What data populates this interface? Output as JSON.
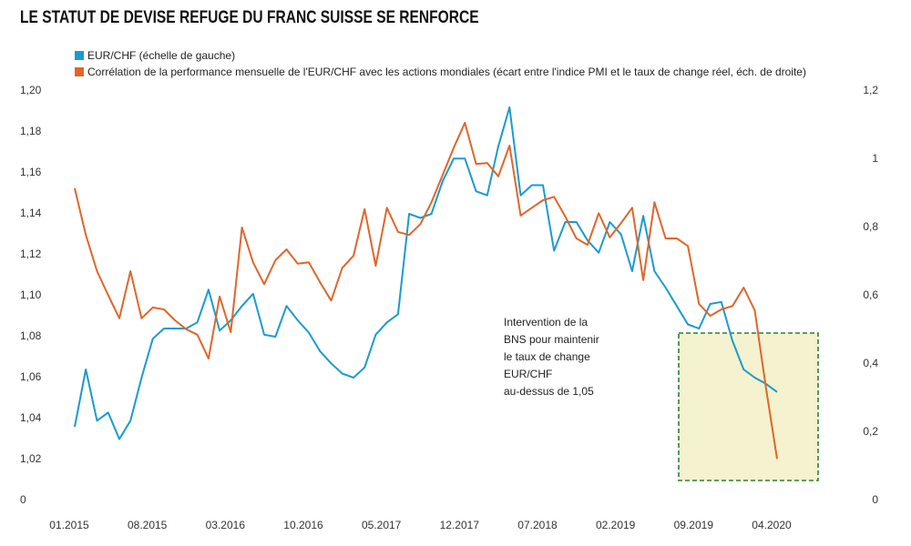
{
  "chart_data": {
    "type": "line",
    "title": "LE STATUT DE DEVISE REFUGE DU FRANC SUISSE SE RENFORCE",
    "categories": [
      "01.2015",
      null,
      null,
      null,
      null,
      null,
      null,
      "08.2015",
      null,
      null,
      null,
      null,
      null,
      null,
      "03.2016",
      null,
      null,
      null,
      null,
      null,
      null,
      "10.2016",
      null,
      null,
      null,
      null,
      null,
      null,
      "05.2017",
      null,
      null,
      null,
      null,
      null,
      null,
      "12.2017",
      null,
      null,
      null,
      null,
      null,
      null,
      "07.2018",
      null,
      null,
      null,
      null,
      null,
      null,
      "02.2019",
      null,
      null,
      null,
      null,
      null,
      null,
      "09.2019",
      null,
      null,
      null,
      null,
      null,
      null,
      "04.2020"
    ],
    "series": [
      {
        "name": "EUR/CHF (échelle de gauche)",
        "color": "#1a9bd0",
        "values": [
          1.036,
          1.064,
          1.039,
          1.043,
          1.03,
          1.039,
          1.06,
          1.079,
          1.084,
          1.084,
          1.084,
          1.087,
          1.103,
          1.083,
          1.088,
          1.095,
          1.101,
          1.081,
          1.08,
          1.095,
          1.088,
          1.082,
          1.073,
          1.067,
          1.062,
          1.06,
          1.065,
          1.081,
          1.087,
          1.091,
          1.14,
          1.138,
          1.14,
          1.156,
          1.167,
          1.167,
          1.151,
          1.149,
          1.173,
          1.192,
          1.149,
          1.154,
          1.154,
          1.122,
          1.136,
          1.136,
          1.127,
          1.121,
          1.136,
          1.13,
          1.112,
          1.139,
          1.112,
          1.104,
          1.095,
          1.086,
          1.084,
          1.096,
          1.097,
          1.078,
          1.064,
          1.06,
          1.057,
          1.053
        ]
      },
      {
        "name": "Corrélation de la performance mensuelle de l'EUR/CHF avec les actions mondiales (écart entre l'indice PMI et le taux de change réel, éch. de droite)",
        "color": "#e0662a",
        "axis": "y2",
        "values": [
          0.915,
          0.778,
          0.672,
          0.602,
          0.534,
          0.672,
          0.534,
          0.566,
          0.56,
          0.528,
          0.502,
          0.486,
          0.416,
          0.598,
          0.493,
          0.8,
          0.698,
          0.634,
          0.704,
          0.736,
          0.694,
          0.698,
          0.64,
          0.586,
          0.682,
          0.717,
          0.854,
          0.688,
          0.858,
          0.787,
          0.778,
          0.81,
          0.874,
          0.954,
          1.034,
          1.107,
          0.986,
          0.989,
          0.95,
          1.04,
          0.835,
          0.858,
          0.88,
          0.89,
          0.832,
          0.768,
          0.749,
          0.842,
          0.771,
          0.813,
          0.858,
          0.646,
          0.874,
          0.768,
          0.768,
          0.746,
          0.576,
          0.541,
          0.56,
          0.57,
          0.624,
          0.557,
          0.33,
          0.122
        ]
      }
    ],
    "ylim": [
      1.0,
      1.2
    ],
    "yticks": [
      {
        "value": 1.02,
        "label": "1,02"
      },
      {
        "value": 1.04,
        "label": "1,04"
      },
      {
        "value": 1.06,
        "label": "1,06"
      },
      {
        "value": 1.08,
        "label": "1,08"
      },
      {
        "value": 1.1,
        "label": "1,10"
      },
      {
        "value": 1.12,
        "label": "1,12"
      },
      {
        "value": 1.14,
        "label": "1,14"
      },
      {
        "value": 1.16,
        "label": "1,16"
      },
      {
        "value": 1.18,
        "label": "1,18"
      },
      {
        "value": 1.2,
        "label": "1,20"
      }
    ],
    "y_break_label": "0",
    "y2lim": [
      0,
      1.2
    ],
    "y2ticks": [
      0,
      {
        "value": 0.2,
        "label": "0,2"
      },
      {
        "value": 0.4,
        "label": "0,4"
      },
      {
        "value": 0.6,
        "label": "0,6"
      },
      {
        "value": 0.8,
        "label": "0,8"
      },
      1,
      {
        "value": 1.2,
        "label": "1,2"
      }
    ],
    "grid": false,
    "annotation": [
      "Intervention de la",
      "BNS pour maintenir",
      "le taux de change",
      "EUR/CHF",
      "au-dessus de 1,05"
    ]
  }
}
